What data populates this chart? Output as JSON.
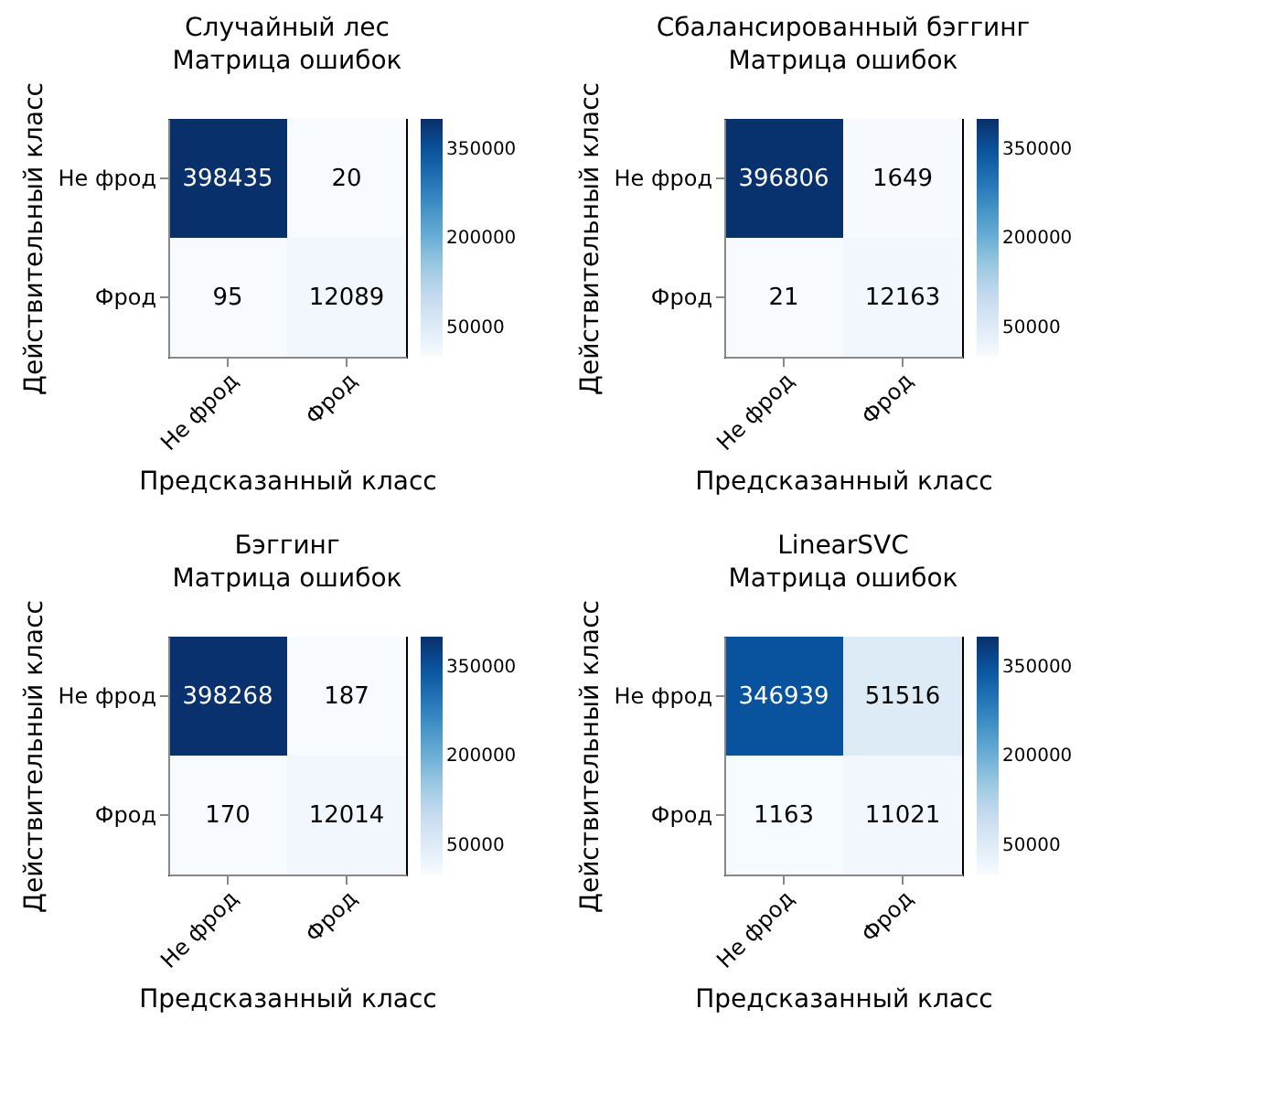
{
  "chart_data": [
    {
      "type": "heatmap",
      "title": "Случайный лес",
      "subtitle": "Матрица ошибок",
      "xlabel": "Предсказанный класс",
      "ylabel": "Действительный класс",
      "categories": [
        "Не фрод",
        "Фрод"
      ],
      "y_categories": [
        "Не фрод",
        "Фрод"
      ],
      "cells": [
        [
          398435,
          20
        ],
        [
          95,
          12089
        ]
      ],
      "data_labels": true,
      "clim": [
        0,
        400000
      ],
      "cticks": [
        50000,
        200000,
        350000
      ]
    },
    {
      "type": "heatmap",
      "title": "Сбалансированный бэггинг",
      "subtitle": "Матрица ошибок",
      "xlabel": "Предсказанный класс",
      "ylabel": "Действительный класс",
      "categories": [
        "Не фрод",
        "Фрод"
      ],
      "y_categories": [
        "Не фрод",
        "Фрод"
      ],
      "cells": [
        [
          396806,
          1649
        ],
        [
          21,
          12163
        ]
      ],
      "data_labels": true,
      "clim": [
        0,
        400000
      ],
      "cticks": [
        50000,
        200000,
        350000
      ]
    },
    {
      "type": "heatmap",
      "title": "Бэггинг",
      "subtitle": "Матрица ошибок",
      "xlabel": "Предсказанный класс",
      "ylabel": "Действительный класс",
      "categories": [
        "Не фрод",
        "Фрод"
      ],
      "y_categories": [
        "Не фрод",
        "Фрод"
      ],
      "cells": [
        [
          398268,
          187
        ],
        [
          170,
          12014
        ]
      ],
      "data_labels": true,
      "clim": [
        0,
        400000
      ],
      "cticks": [
        50000,
        200000,
        350000
      ]
    },
    {
      "type": "heatmap",
      "title": "LinearSVC",
      "subtitle": "Матрица ошибок",
      "xlabel": "Предсказанный класс",
      "ylabel": "Действительный класс",
      "categories": [
        "Не фрод",
        "Фрод"
      ],
      "y_categories": [
        "Не фрод",
        "Фрод"
      ],
      "cells": [
        [
          346939,
          51516
        ],
        [
          1163,
          11021
        ]
      ],
      "data_labels": true,
      "clim": [
        0,
        400000
      ],
      "cticks": [
        50000,
        200000,
        350000
      ]
    }
  ]
}
